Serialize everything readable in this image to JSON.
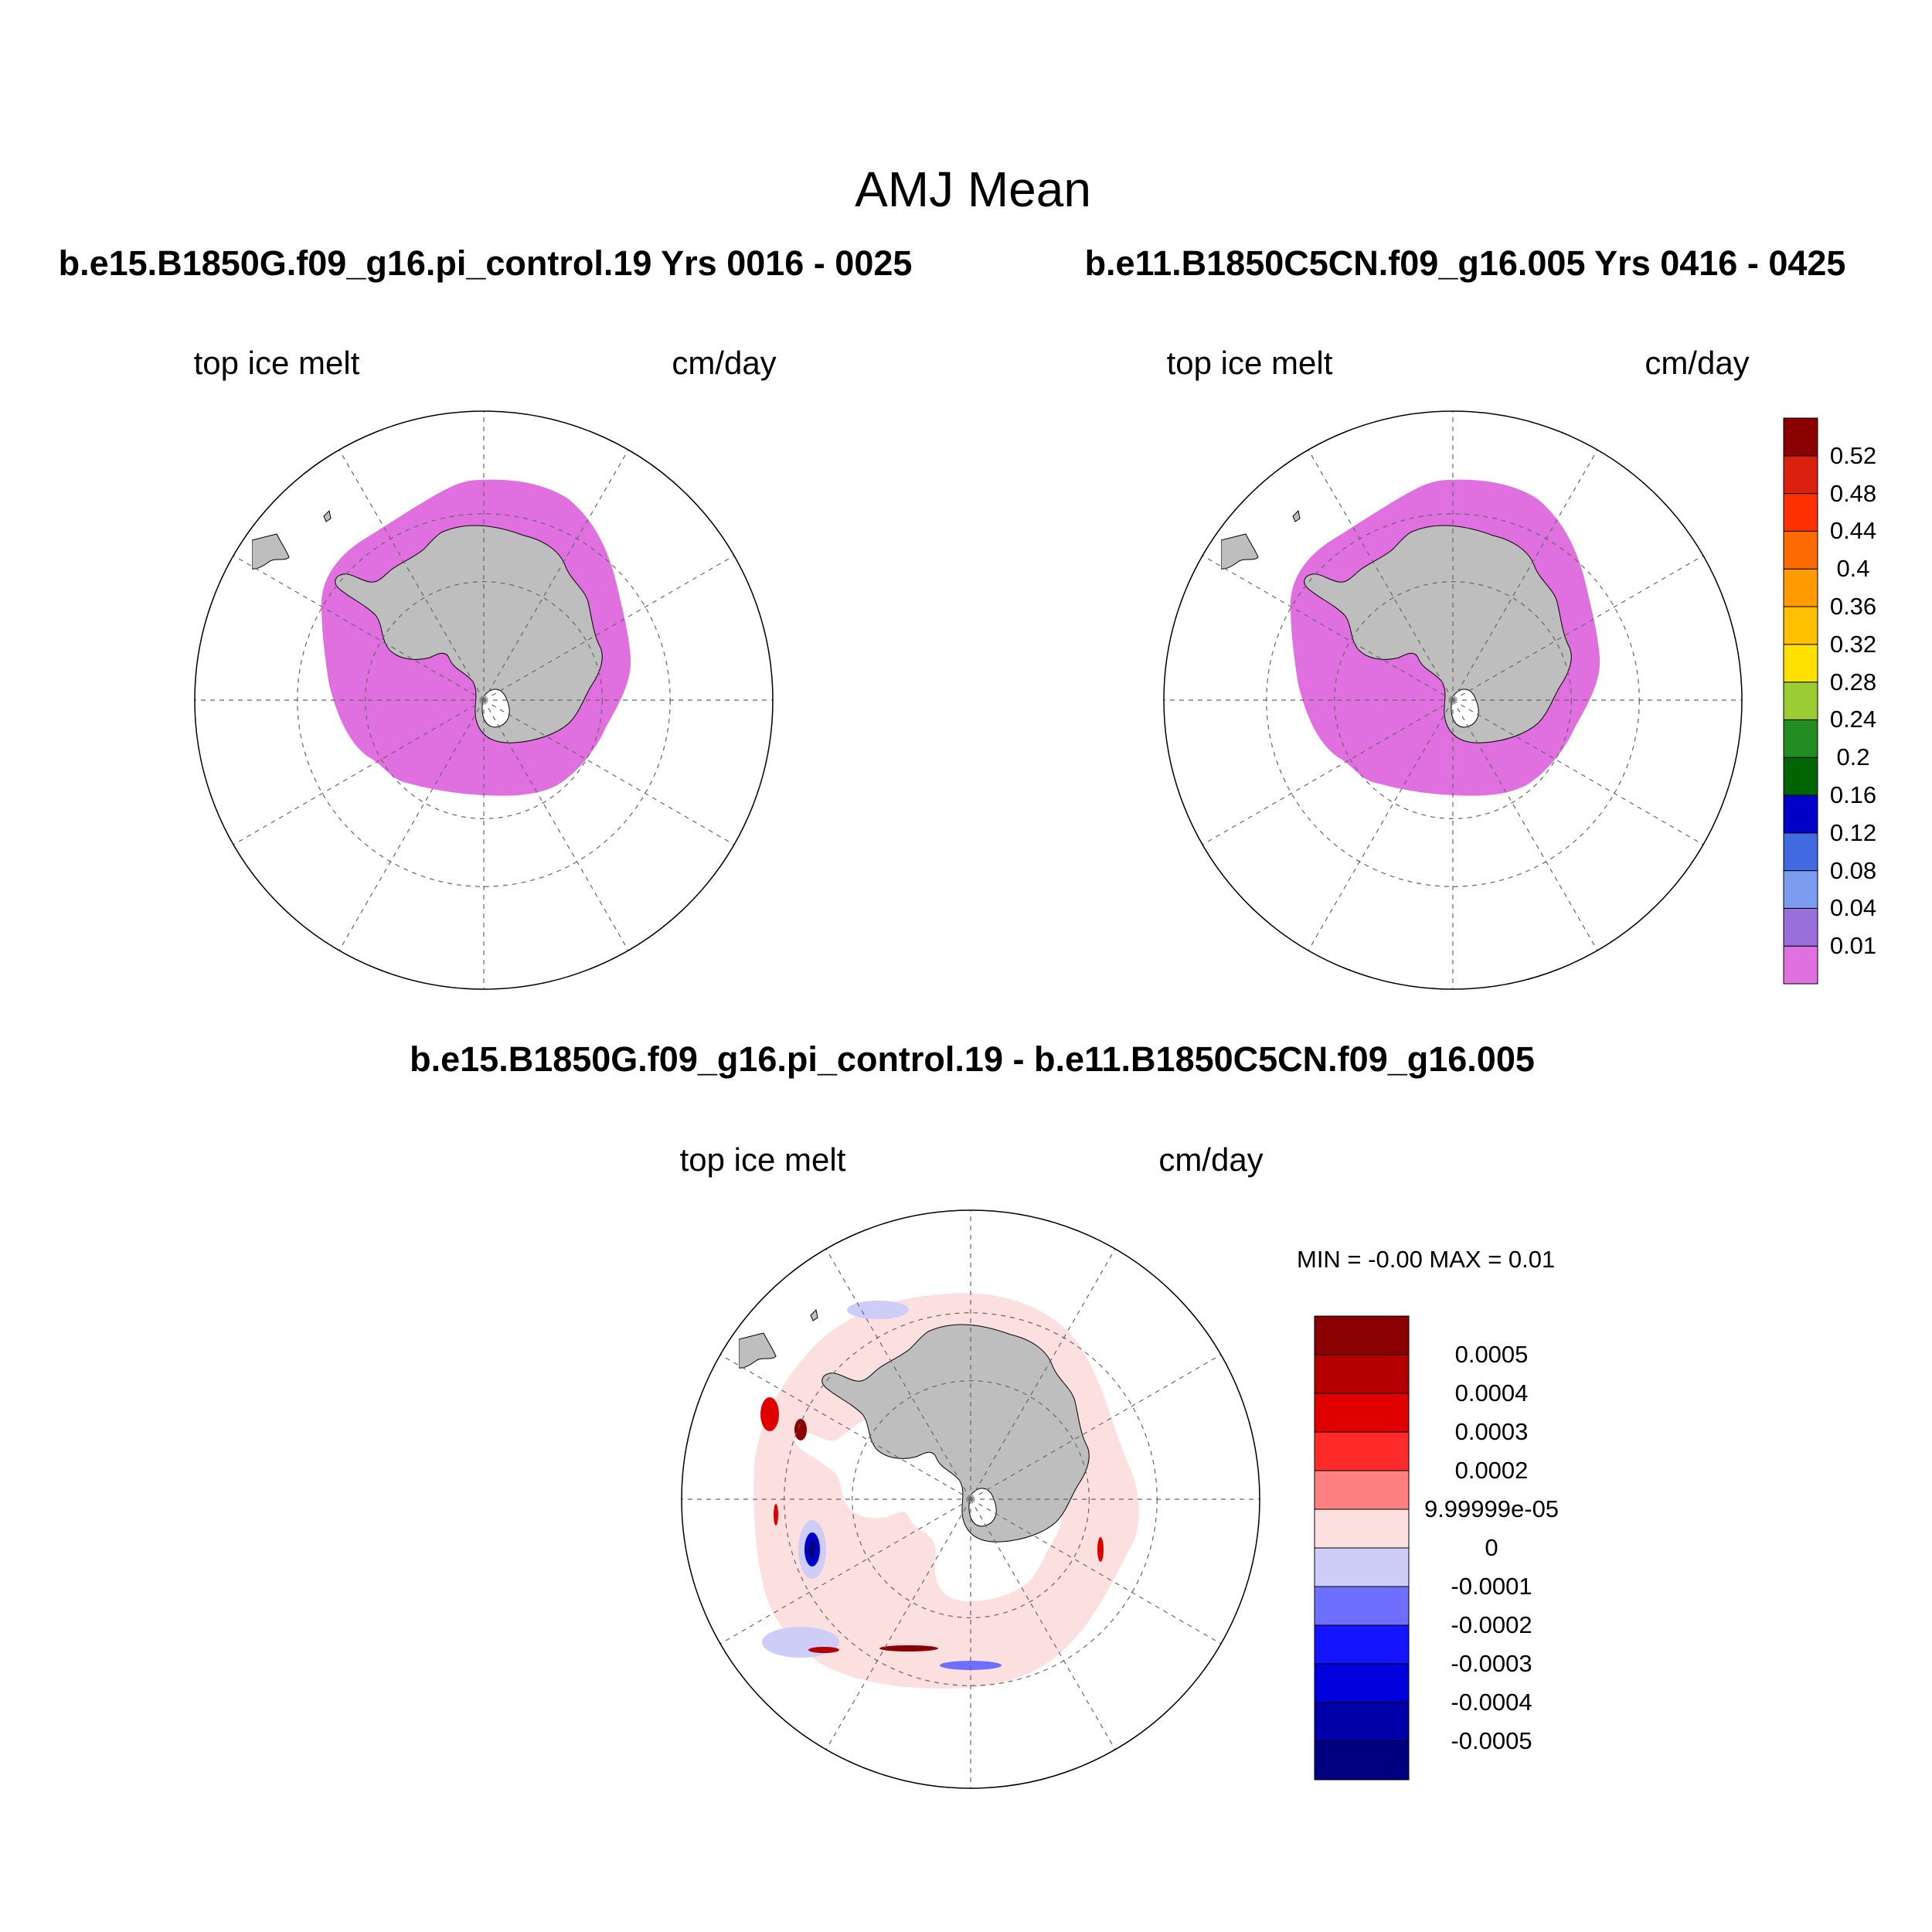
{
  "main_title": "AMJ Mean",
  "panels": {
    "left": {
      "title": "b.e15.B1850G.f09_g16.pi_control.19  Yrs 0016 - 0025",
      "variable": "top ice melt",
      "units": "cm/day"
    },
    "right": {
      "title": "b.e11.B1850C5CN.f09_g16.005  Yrs 0416 - 0425",
      "variable": "top ice melt",
      "units": "cm/day"
    },
    "diff": {
      "title": "b.e15.B1850G.f09_g16.pi_control.19 - b.e11.B1850C5CN.f09_g16.005",
      "variable": "top ice melt",
      "units": "cm/day",
      "minmax": "MIN =  -0.00 MAX =   0.01"
    }
  },
  "colors": {
    "ice_fill": "#e070e0",
    "land": "#bebebe",
    "diff_background": "#fce0e0",
    "diff_negative_light": "#cdcdf8"
  },
  "colorbar_main": {
    "colors": [
      "#e070e0",
      "#9a6fdc",
      "#7b9cf0",
      "#4169e1",
      "#0000c8",
      "#006400",
      "#228b22",
      "#9acd32",
      "#ffe000",
      "#ffc000",
      "#ff9a00",
      "#ff6a00",
      "#ff3000",
      "#dc2010",
      "#8b0000"
    ],
    "labels": [
      "0.01",
      "0.04",
      "0.08",
      "0.12",
      "0.16",
      "0.2",
      "0.24",
      "0.28",
      "0.32",
      "0.36",
      "0.4",
      "0.44",
      "0.48",
      "0.52"
    ]
  },
  "colorbar_diff": {
    "colors": [
      "#000080",
      "#0000a8",
      "#0000dc",
      "#1414ff",
      "#6e6eff",
      "#cdcdf8",
      "#fce0e0",
      "#ff8080",
      "#ff2a2a",
      "#e00000",
      "#b40000",
      "#8b0000"
    ],
    "labels": [
      "-0.0005",
      "-0.0004",
      "-0.0003",
      "-0.0002",
      "-0.0001",
      "0",
      "9.99999e-05",
      "0.0002",
      "0.0003",
      "0.0004",
      "0.0005"
    ]
  }
}
